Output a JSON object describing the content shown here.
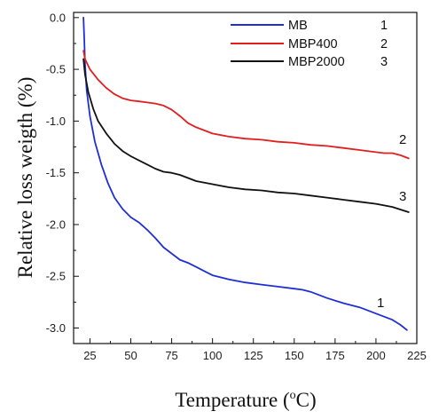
{
  "chart_data": {
    "type": "line",
    "xlabel": "Temperature (",
    "xlabel_sup": "o",
    "xlabel_tail": "C)",
    "ylabel": "Relative loss weigth (%)",
    "xlim": [
      15,
      225
    ],
    "ylim": [
      -3.15,
      0.05
    ],
    "x_ticks": [
      25,
      50,
      75,
      100,
      125,
      150,
      175,
      200,
      225
    ],
    "x_tick_labels": [
      "25",
      "50",
      "75",
      "100",
      "125",
      "150",
      "175",
      "200",
      "225"
    ],
    "y_ticks": [
      0.0,
      -0.5,
      -1.0,
      -1.5,
      -2.0,
      -2.5,
      -3.0
    ],
    "y_tick_labels": [
      "0.0",
      "-0.5",
      "-1.0",
      "-1.5",
      "-2.0",
      "-2.5",
      "-3.0"
    ],
    "grid": false,
    "legend_position": "top-right",
    "series": [
      {
        "name": "MB",
        "legend_number": "1",
        "end_label": "1",
        "color": "#1f2fd6",
        "x": [
          21,
          21.5,
          22,
          23,
          25,
          28,
          32,
          36,
          40,
          45,
          50,
          55,
          60,
          65,
          70,
          75,
          80,
          85,
          90,
          95,
          100,
          110,
          120,
          130,
          140,
          150,
          155,
          160,
          170,
          180,
          190,
          200,
          205,
          210,
          215,
          219
        ],
        "y": [
          0.0,
          -0.2,
          -0.45,
          -0.7,
          -0.95,
          -1.2,
          -1.42,
          -1.6,
          -1.74,
          -1.85,
          -1.93,
          -1.98,
          -2.05,
          -2.13,
          -2.22,
          -2.28,
          -2.34,
          -2.37,
          -2.41,
          -2.45,
          -2.49,
          -2.53,
          -2.56,
          -2.58,
          -2.6,
          -2.62,
          -2.63,
          -2.65,
          -2.71,
          -2.76,
          -2.8,
          -2.86,
          -2.89,
          -2.92,
          -2.97,
          -3.02
        ]
      },
      {
        "name": "MBP400",
        "legend_number": "2",
        "end_label": "2",
        "color": "#e11f1f",
        "x": [
          21,
          22,
          25,
          30,
          35,
          40,
          45,
          50,
          55,
          60,
          65,
          70,
          75,
          80,
          85,
          90,
          100,
          110,
          120,
          130,
          140,
          150,
          160,
          170,
          180,
          190,
          200,
          205,
          210,
          215,
          220
        ],
        "y": [
          -0.32,
          -0.4,
          -0.5,
          -0.6,
          -0.68,
          -0.74,
          -0.78,
          -0.8,
          -0.81,
          -0.82,
          -0.83,
          -0.85,
          -0.89,
          -0.95,
          -1.02,
          -1.06,
          -1.12,
          -1.15,
          -1.17,
          -1.18,
          -1.2,
          -1.21,
          -1.23,
          -1.24,
          -1.26,
          -1.28,
          -1.3,
          -1.31,
          -1.31,
          -1.33,
          -1.36
        ]
      },
      {
        "name": "MBP2000",
        "legend_number": "3",
        "end_label": "3",
        "color": "#111111",
        "x": [
          21,
          22,
          24,
          27,
          30,
          35,
          40,
          45,
          50,
          55,
          60,
          65,
          70,
          75,
          80,
          85,
          90,
          100,
          110,
          120,
          130,
          140,
          150,
          160,
          170,
          180,
          190,
          200,
          210,
          220
        ],
        "y": [
          -0.4,
          -0.55,
          -0.72,
          -0.88,
          -1.0,
          -1.12,
          -1.22,
          -1.29,
          -1.34,
          -1.38,
          -1.42,
          -1.46,
          -1.49,
          -1.5,
          -1.52,
          -1.55,
          -1.58,
          -1.61,
          -1.64,
          -1.66,
          -1.67,
          -1.69,
          -1.7,
          -1.72,
          -1.74,
          -1.76,
          -1.78,
          -1.8,
          -1.83,
          -1.88
        ]
      }
    ]
  }
}
